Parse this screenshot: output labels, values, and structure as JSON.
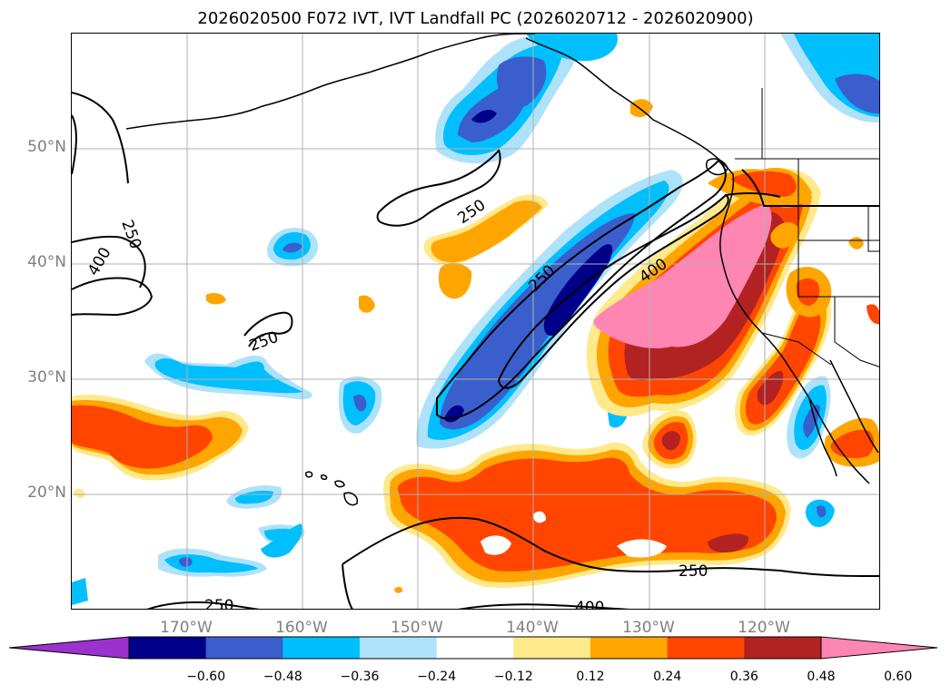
{
  "title": "2026020500 F072 IVT, IVT Landfall PC (2026020712 - 2026020900)",
  "lat_labels": [
    "50°N",
    "40°N",
    "30°N",
    "20°N"
  ],
  "lon_labels": [
    "170°W",
    "160°W",
    "150°W",
    "140°W",
    "130°W",
    "120°W"
  ],
  "contour_labels": [
    "250",
    "400",
    "250",
    "250",
    "250",
    "400",
    "250",
    "250",
    "400"
  ],
  "colorbar": {
    "colors": [
      "#9b32cd",
      "#00008b",
      "#3a5fcd",
      "#00bfff",
      "#aee2fa",
      "#ffffff",
      "#ffe98a",
      "#ffa500",
      "#ff4500",
      "#b22222",
      "#ff86b3"
    ],
    "ticks": [
      "−0.60",
      "−0.48",
      "−0.36",
      "−0.24",
      "−0.12",
      "0.12",
      "0.24",
      "0.36",
      "0.48",
      "0.60"
    ]
  }
}
